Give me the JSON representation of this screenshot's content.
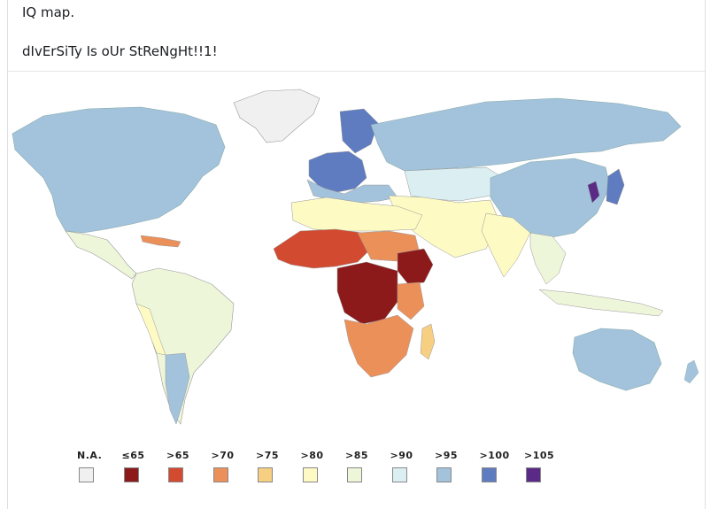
{
  "post": {
    "line1": "IQ map.",
    "line2": "dIvErSiTy Is oUr StReNgHt!!1!"
  },
  "legend": [
    {
      "label": "N.A.",
      "color": "#f0f0f0"
    },
    {
      "label": "≤65",
      "color": "#8c1a1a"
    },
    {
      "label": ">65",
      "color": "#d24a30"
    },
    {
      "label": ">70",
      "color": "#ec905a"
    },
    {
      "label": ">75",
      "color": "#f6cf82"
    },
    {
      "label": ">80",
      "color": "#fefac4"
    },
    {
      "label": ">85",
      "color": "#eef6da"
    },
    {
      "label": ">90",
      "color": "#dbeff2"
    },
    {
      "label": ">95",
      "color": "#a3c3dc"
    },
    {
      "label": ">100",
      "color": "#5f7cc0"
    },
    {
      "label": ">105",
      "color": "#5b2a86"
    }
  ]
}
